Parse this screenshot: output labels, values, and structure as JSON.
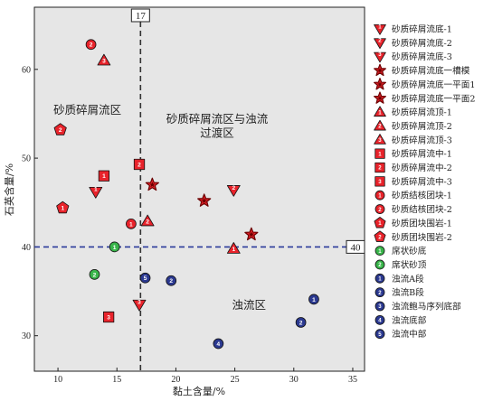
{
  "chart_data": {
    "type": "scatter",
    "xlabel": "黏土含量/%",
    "ylabel": "石英含量/%",
    "xlim": [
      8,
      36
    ],
    "ylim": [
      26,
      67
    ],
    "xticks": [
      10,
      15,
      20,
      25,
      30,
      35
    ],
    "yticks": [
      30,
      40,
      50,
      60
    ],
    "grid": false,
    "background": "#e6e6e6",
    "legend_position": "right",
    "thresholds": [
      {
        "axis": "x",
        "value": 17,
        "label": "17",
        "style": "dashed",
        "color": "#333333"
      },
      {
        "axis": "y",
        "value": 40,
        "label": "40",
        "style": "dashed",
        "color": "#2a3a9a"
      }
    ],
    "regions": [
      {
        "label": "砂质碎屑流区",
        "x": 12.5,
        "y": 55
      },
      {
        "label": "砂质碎屑流区与浊流",
        "x": 23.5,
        "y": 54
      },
      {
        "label": "过渡区",
        "x": 23.5,
        "y": 52.4
      },
      {
        "label": "浊流区",
        "x": 26.2,
        "y": 33
      }
    ],
    "colors": {
      "red": "#e8232b",
      "blue": "#2b3990",
      "green": "#39b54a",
      "outline": "#5a0000"
    },
    "series": [
      {
        "name": "砂质碎屑流底-1",
        "shape": "tri-down",
        "num": "1",
        "color": "#e8232b",
        "points": [
          [
            13.2,
            46.2
          ]
        ]
      },
      {
        "name": "砂质碎屑流底-2",
        "shape": "tri-down",
        "num": "2",
        "color": "#e8232b",
        "points": [
          [
            24.9,
            46.4
          ]
        ]
      },
      {
        "name": "砂质碎屑流底-3",
        "shape": "tri-down",
        "num": "3",
        "color": "#e8232b",
        "points": [
          [
            16.9,
            33.5
          ]
        ]
      },
      {
        "name": "砂质碎屑流底一槽模",
        "shape": "star",
        "num": "",
        "color": "#e8232b",
        "points": [
          [
            18.0,
            47.0
          ]
        ]
      },
      {
        "name": "砂质碎屑流底一平面1",
        "shape": "star",
        "num": "",
        "color": "#e8232b",
        "points": [
          [
            22.4,
            45.2
          ]
        ]
      },
      {
        "name": "砂质碎屑流底一平面2",
        "shape": "star",
        "num": "",
        "color": "#e8232b",
        "points": [
          [
            26.4,
            41.4
          ]
        ]
      },
      {
        "name": "砂质碎屑流顶-1",
        "shape": "tri-up",
        "num": "1",
        "color": "#e8232b",
        "points": [
          [
            24.9,
            39.8
          ]
        ]
      },
      {
        "name": "砂质碎屑流顶-2",
        "shape": "tri-up",
        "num": "2",
        "color": "#e8232b",
        "points": [
          [
            17.6,
            42.9
          ]
        ]
      },
      {
        "name": "砂质碎屑流顶-3",
        "shape": "tri-up",
        "num": "3",
        "color": "#e8232b",
        "points": [
          [
            13.9,
            61.0
          ]
        ]
      },
      {
        "name": "砂质碎屑流中-1",
        "shape": "square",
        "num": "1",
        "color": "#e8232b",
        "points": [
          [
            13.9,
            48.0
          ]
        ]
      },
      {
        "name": "砂质碎屑流中-2",
        "shape": "square",
        "num": "2",
        "color": "#e8232b",
        "points": [
          [
            16.9,
            49.3
          ]
        ]
      },
      {
        "name": "砂质碎屑流中-3",
        "shape": "square",
        "num": "3",
        "color": "#e8232b",
        "points": [
          [
            14.3,
            32.1
          ]
        ]
      },
      {
        "name": "砂质结核团块-1",
        "shape": "circle",
        "num": "1",
        "color": "#e8232b",
        "points": [
          [
            16.2,
            42.6
          ]
        ]
      },
      {
        "name": "砂质结核团块-2",
        "shape": "circle",
        "num": "2",
        "color": "#e8232b",
        "points": [
          [
            12.8,
            62.8
          ]
        ]
      },
      {
        "name": "砂质团块围岩-1",
        "shape": "pentagon",
        "num": "1",
        "color": "#e8232b",
        "points": [
          [
            10.4,
            44.4
          ]
        ]
      },
      {
        "name": "砂质团块围岩-2",
        "shape": "pentagon",
        "num": "2",
        "color": "#e8232b",
        "points": [
          [
            10.2,
            53.2
          ]
        ]
      },
      {
        "name": "席状砂底",
        "shape": "circle",
        "num": "1",
        "color": "#39b54a",
        "points": [
          [
            14.8,
            40.0
          ]
        ]
      },
      {
        "name": "席状砂顶",
        "shape": "circle",
        "num": "2",
        "color": "#39b54a",
        "points": [
          [
            13.1,
            36.9
          ]
        ]
      },
      {
        "name": "浊流A段",
        "shape": "circle",
        "num": "1",
        "color": "#2b3990",
        "points": [
          [
            31.7,
            34.1
          ]
        ]
      },
      {
        "name": "浊流B段",
        "shape": "circle",
        "num": "2",
        "color": "#2b3990",
        "points": [
          [
            30.6,
            31.5
          ],
          [
            19.6,
            36.2
          ]
        ]
      },
      {
        "name": "浊流鲍马序列底部",
        "shape": "circle",
        "num": "3",
        "color": "#2b3990",
        "points": []
      },
      {
        "name": "浊流底部",
        "shape": "circle",
        "num": "4",
        "color": "#2b3990",
        "points": [
          [
            23.6,
            29.1
          ]
        ]
      },
      {
        "name": "浊流中部",
        "shape": "circle",
        "num": "5",
        "color": "#2b3990",
        "points": [
          [
            17.4,
            36.5
          ]
        ]
      }
    ]
  }
}
